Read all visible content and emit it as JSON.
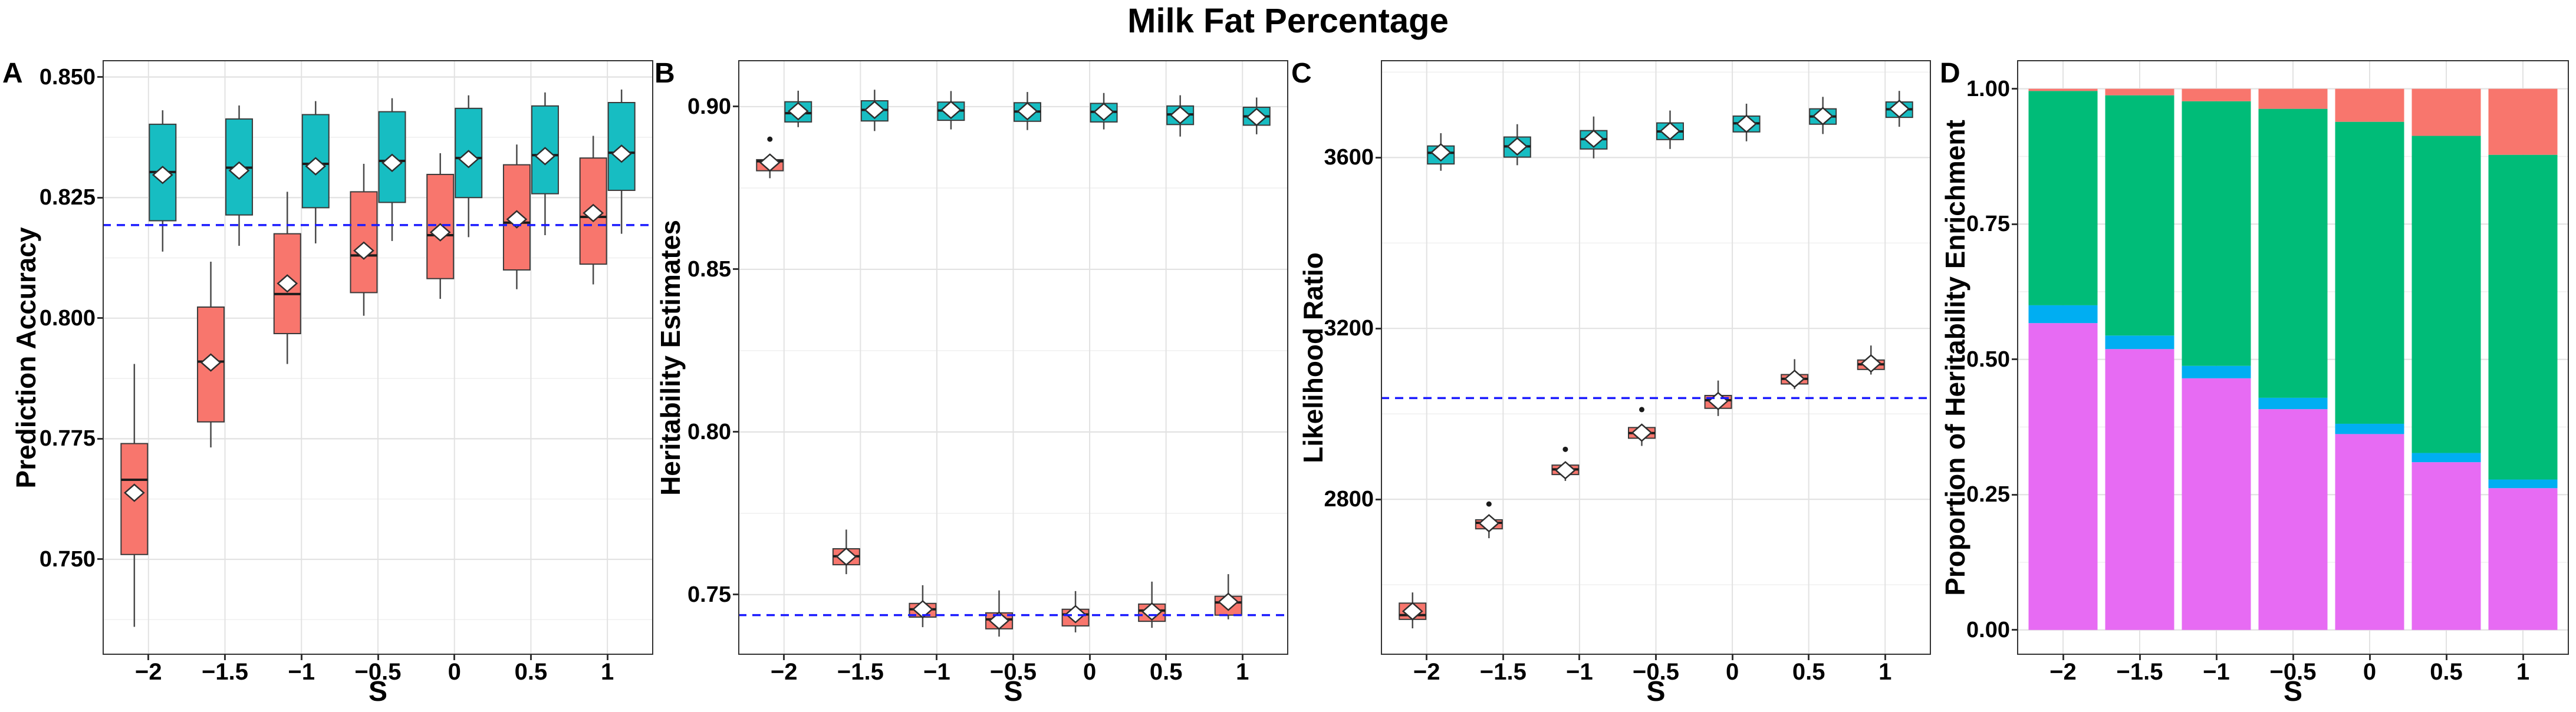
{
  "page": {
    "title": "Milk Fat Percentage"
  },
  "colors": {
    "series1": "#F8766D",
    "series2": "#17BDC2",
    "hline": "#1A1AFF",
    "box_stroke": "#3A3A3A",
    "median": "#1C1C1C",
    "whisker": "#4A4A4A",
    "mean_fill": "#FFFFFF",
    "outlier": "#1A1A1A",
    "grid_major": "#E2E2E2",
    "grid_minor": "#F0F0F0",
    "panel_border": "#333333",
    "stack": [
      "#E76BF3",
      "#00AEF2",
      "#00BC78",
      "#F8766D"
    ]
  },
  "chart_data": [
    {
      "label": "A",
      "type": "grouped_boxplot",
      "xlabel": "S",
      "ylabel": "Prediction Accuracy",
      "categories": [
        "−2",
        "−1.5",
        "−1",
        "−0.5",
        "0",
        "0.5",
        "1"
      ],
      "ylim": [
        0.7302,
        0.8535
      ],
      "yticks": [
        0.75,
        0.775,
        0.8,
        0.825,
        0.85
      ],
      "ytick_labels": [
        "0.750",
        "0.775",
        "0.800",
        "0.825",
        "0.850"
      ],
      "hline": 0.8193,
      "legend": "none",
      "series": [
        {
          "name": "series1",
          "boxes": [
            {
              "lo": 0.736,
              "q1": 0.751,
              "med": 0.7665,
              "q3": 0.774,
              "hi": 0.7905,
              "mean": 0.7638,
              "outliers": []
            },
            {
              "lo": 0.7732,
              "q1": 0.7785,
              "med": 0.791,
              "q3": 0.8023,
              "hi": 0.8117,
              "mean": 0.7908,
              "outliers": []
            },
            {
              "lo": 0.7905,
              "q1": 0.7968,
              "med": 0.805,
              "q3": 0.8175,
              "hi": 0.8262,
              "mean": 0.8072,
              "outliers": []
            },
            {
              "lo": 0.8005,
              "q1": 0.8053,
              "med": 0.813,
              "q3": 0.8262,
              "hi": 0.832,
              "mean": 0.814,
              "outliers": []
            },
            {
              "lo": 0.804,
              "q1": 0.8082,
              "med": 0.8172,
              "q3": 0.8298,
              "hi": 0.8342,
              "mean": 0.8178,
              "outliers": []
            },
            {
              "lo": 0.806,
              "q1": 0.81,
              "med": 0.8198,
              "q3": 0.8318,
              "hi": 0.836,
              "mean": 0.8205,
              "outliers": []
            },
            {
              "lo": 0.807,
              "q1": 0.8112,
              "med": 0.821,
              "q3": 0.8332,
              "hi": 0.8378,
              "mean": 0.8218,
              "outliers": []
            }
          ]
        },
        {
          "name": "series2",
          "boxes": [
            {
              "lo": 0.8138,
              "q1": 0.8202,
              "med": 0.8303,
              "q3": 0.8402,
              "hi": 0.8431,
              "mean": 0.8297,
              "outliers": []
            },
            {
              "lo": 0.815,
              "q1": 0.8214,
              "med": 0.8312,
              "q3": 0.8413,
              "hi": 0.8441,
              "mean": 0.8306,
              "outliers": []
            },
            {
              "lo": 0.8155,
              "q1": 0.8229,
              "med": 0.832,
              "q3": 0.8422,
              "hi": 0.845,
              "mean": 0.8315,
              "outliers": []
            },
            {
              "lo": 0.816,
              "q1": 0.824,
              "med": 0.8326,
              "q3": 0.8428,
              "hi": 0.8456,
              "mean": 0.8322,
              "outliers": []
            },
            {
              "lo": 0.8168,
              "q1": 0.825,
              "med": 0.8332,
              "q3": 0.8435,
              "hi": 0.8462,
              "mean": 0.833,
              "outliers": []
            },
            {
              "lo": 0.8172,
              "q1": 0.8258,
              "med": 0.8338,
              "q3": 0.844,
              "hi": 0.8468,
              "mean": 0.8336,
              "outliers": []
            },
            {
              "lo": 0.8175,
              "q1": 0.8265,
              "med": 0.8343,
              "q3": 0.8447,
              "hi": 0.8474,
              "mean": 0.8341,
              "outliers": []
            }
          ]
        }
      ]
    },
    {
      "label": "B",
      "type": "grouped_boxplot",
      "xlabel": "S",
      "ylabel": "Heritability Estimates",
      "categories": [
        "−2",
        "−1.5",
        "−1",
        "−0.5",
        "0",
        "0.5",
        "1"
      ],
      "ylim": [
        0.7315,
        0.9143
      ],
      "yticks": [
        0.75,
        0.8,
        0.85,
        0.9
      ],
      "ytick_labels": [
        "0.75",
        "0.80",
        "0.85",
        "0.90"
      ],
      "hline": 0.7437,
      "legend": "none",
      "series": [
        {
          "name": "series1",
          "boxes": [
            {
              "lo": 0.878,
              "q1": 0.8803,
              "med": 0.8832,
              "q3": 0.8837,
              "hi": 0.8843,
              "mean": 0.8828,
              "outliers": [
                0.89
              ]
            },
            {
              "lo": 0.7563,
              "q1": 0.7592,
              "med": 0.7618,
              "q3": 0.7641,
              "hi": 0.77,
              "mean": 0.7617,
              "outliers": []
            },
            {
              "lo": 0.74,
              "q1": 0.7431,
              "med": 0.7455,
              "q3": 0.7473,
              "hi": 0.7529,
              "mean": 0.7455,
              "outliers": []
            },
            {
              "lo": 0.7371,
              "q1": 0.7395,
              "med": 0.7424,
              "q3": 0.7444,
              "hi": 0.7513,
              "mean": 0.742,
              "outliers": []
            },
            {
              "lo": 0.7384,
              "q1": 0.7404,
              "med": 0.7439,
              "q3": 0.7455,
              "hi": 0.7511,
              "mean": 0.744,
              "outliers": []
            },
            {
              "lo": 0.7398,
              "q1": 0.7418,
              "med": 0.7451,
              "q3": 0.7471,
              "hi": 0.754,
              "mean": 0.7448,
              "outliers": []
            },
            {
              "lo": 0.7424,
              "q1": 0.7437,
              "med": 0.7476,
              "q3": 0.7495,
              "hi": 0.7563,
              "mean": 0.7478,
              "outliers": []
            }
          ]
        },
        {
          "name": "series2",
          "boxes": [
            {
              "lo": 0.8937,
              "q1": 0.8953,
              "med": 0.898,
              "q3": 0.9015,
              "hi": 0.9049,
              "mean": 0.8986,
              "outliers": []
            },
            {
              "lo": 0.8925,
              "q1": 0.8956,
              "med": 0.899,
              "q3": 0.9018,
              "hi": 0.9052,
              "mean": 0.899,
              "outliers": []
            },
            {
              "lo": 0.893,
              "q1": 0.8958,
              "med": 0.8988,
              "q3": 0.9014,
              "hi": 0.9048,
              "mean": 0.899,
              "outliers": []
            },
            {
              "lo": 0.8928,
              "q1": 0.8955,
              "med": 0.8985,
              "q3": 0.9012,
              "hi": 0.9045,
              "mean": 0.8986,
              "outliers": []
            },
            {
              "lo": 0.893,
              "q1": 0.8953,
              "med": 0.8984,
              "q3": 0.901,
              "hi": 0.9042,
              "mean": 0.8984,
              "outliers": []
            },
            {
              "lo": 0.8908,
              "q1": 0.8945,
              "med": 0.8976,
              "q3": 0.9002,
              "hi": 0.9035,
              "mean": 0.8974,
              "outliers": []
            },
            {
              "lo": 0.8915,
              "q1": 0.8943,
              "med": 0.897,
              "q3": 0.8998,
              "hi": 0.9028,
              "mean": 0.8968,
              "outliers": []
            }
          ]
        }
      ]
    },
    {
      "label": "C",
      "type": "grouped_boxplot",
      "xlabel": "S",
      "ylabel": "Likelihood Ratio",
      "categories": [
        "−2",
        "−1.5",
        "−1",
        "−0.5",
        "0",
        "0.5",
        "1"
      ],
      "ylim": [
        2436,
        3828
      ],
      "yticks": [
        2800,
        3200,
        3600
      ],
      "ytick_labels": [
        "2800",
        "3200",
        "3600"
      ],
      "hline": 3037,
      "legend": "none",
      "series": [
        {
          "name": "series1",
          "boxes": [
            {
              "lo": 2498,
              "q1": 2519,
              "med": 2529,
              "q3": 2557,
              "hi": 2582,
              "mean": 2538,
              "outliers": []
            },
            {
              "lo": 2709,
              "q1": 2731,
              "med": 2745,
              "q3": 2752,
              "hi": 2758,
              "mean": 2744,
              "outliers": [
                2789
              ]
            },
            {
              "lo": 2843,
              "q1": 2858,
              "med": 2870,
              "q3": 2880,
              "hi": 2888,
              "mean": 2868,
              "outliers": [
                2917
              ]
            },
            {
              "lo": 2925,
              "q1": 2943,
              "med": 2955,
              "q3": 2968,
              "hi": 2976,
              "mean": 2956,
              "outliers": [
                3010
              ]
            },
            {
              "lo": 2995,
              "q1": 3013,
              "med": 3032,
              "q3": 3043,
              "hi": 3078,
              "mean": 3030,
              "outliers": []
            },
            {
              "lo": 3058,
              "q1": 3070,
              "med": 3082,
              "q3": 3092,
              "hi": 3128,
              "mean": 3082,
              "outliers": []
            },
            {
              "lo": 3092,
              "q1": 3104,
              "med": 3116,
              "q3": 3126,
              "hi": 3160,
              "mean": 3118,
              "outliers": []
            }
          ]
        },
        {
          "name": "series2",
          "boxes": [
            {
              "lo": 3569,
              "q1": 3585,
              "med": 3611,
              "q3": 3627,
              "hi": 3657,
              "mean": 3612,
              "outliers": []
            },
            {
              "lo": 3582,
              "q1": 3601,
              "med": 3626,
              "q3": 3648,
              "hi": 3678,
              "mean": 3626,
              "outliers": []
            },
            {
              "lo": 3598,
              "q1": 3620,
              "med": 3643,
              "q3": 3663,
              "hi": 3696,
              "mean": 3644,
              "outliers": []
            },
            {
              "lo": 3620,
              "q1": 3642,
              "med": 3661,
              "q3": 3681,
              "hi": 3710,
              "mean": 3662,
              "outliers": []
            },
            {
              "lo": 3638,
              "q1": 3660,
              "med": 3680,
              "q3": 3697,
              "hi": 3726,
              "mean": 3679,
              "outliers": []
            },
            {
              "lo": 3655,
              "q1": 3678,
              "med": 3696,
              "q3": 3714,
              "hi": 3742,
              "mean": 3697,
              "outliers": []
            },
            {
              "lo": 3672,
              "q1": 3694,
              "med": 3713,
              "q3": 3730,
              "hi": 3756,
              "mean": 3714,
              "outliers": []
            }
          ]
        }
      ]
    },
    {
      "label": "D",
      "type": "stacked_bar",
      "xlabel": "S",
      "ylabel": "Proportion of Heritability Enrichment",
      "categories": [
        "−2",
        "−1.5",
        "−1",
        "−0.5",
        "0",
        "0.5",
        "1"
      ],
      "ylim": [
        -0.046,
        1.053
      ],
      "yticks": [
        0.0,
        0.25,
        0.5,
        0.75,
        1.0
      ],
      "ytick_labels": [
        "0.00",
        "0.25",
        "0.50",
        "0.75",
        "1.00"
      ],
      "legend": "none",
      "stacks": [
        [
          0.567,
          0.033,
          0.396,
          0.004
        ],
        [
          0.519,
          0.025,
          0.444,
          0.012
        ],
        [
          0.465,
          0.023,
          0.489,
          0.023
        ],
        [
          0.408,
          0.021,
          0.534,
          0.037
        ],
        [
          0.362,
          0.019,
          0.558,
          0.061
        ],
        [
          0.31,
          0.017,
          0.586,
          0.087
        ],
        [
          0.262,
          0.016,
          0.6,
          0.122
        ]
      ]
    }
  ]
}
